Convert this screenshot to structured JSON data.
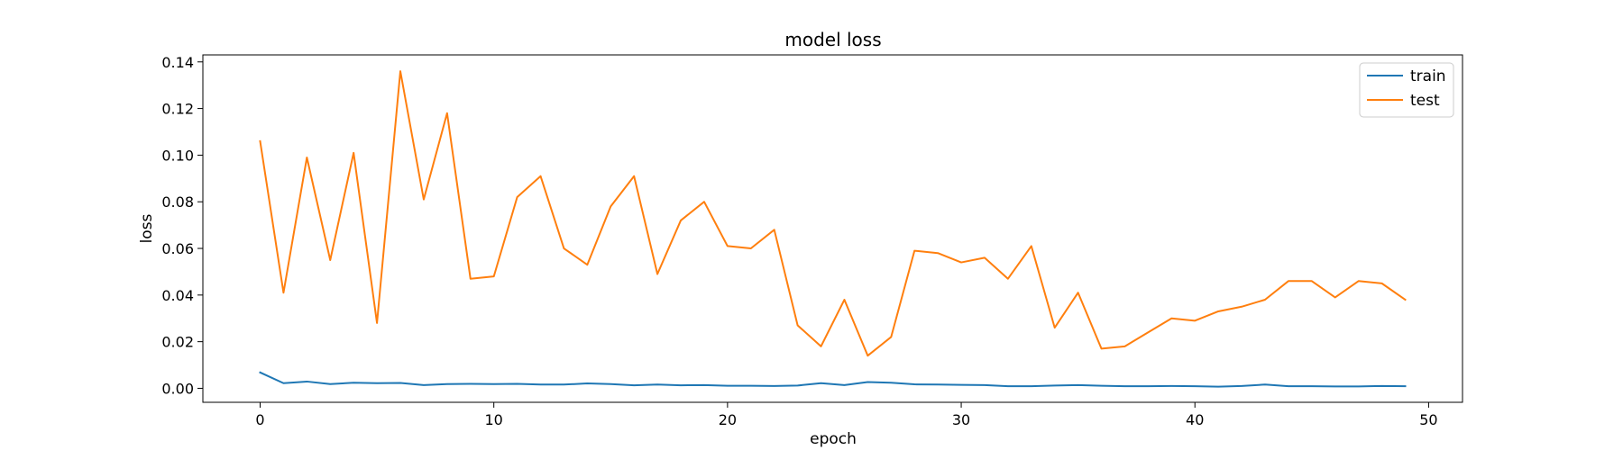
{
  "chart_data": {
    "type": "line",
    "title": "model loss",
    "xlabel": "epoch",
    "ylabel": "loss",
    "xlim": [
      -2.45,
      51.45
    ],
    "ylim": [
      -0.006,
      0.143
    ],
    "xticks": [
      0,
      10,
      20,
      30,
      40,
      50
    ],
    "yticks": [
      0.0,
      0.02,
      0.04,
      0.06,
      0.08,
      0.1,
      0.12,
      0.14
    ],
    "ytick_labels": [
      "0.00",
      "0.02",
      "0.04",
      "0.06",
      "0.08",
      "0.10",
      "0.12",
      "0.14"
    ],
    "grid": false,
    "legend_position": "top-right",
    "x": [
      0,
      1,
      2,
      3,
      4,
      5,
      6,
      7,
      8,
      9,
      10,
      11,
      12,
      13,
      14,
      15,
      16,
      17,
      18,
      19,
      20,
      21,
      22,
      23,
      24,
      25,
      26,
      27,
      28,
      29,
      30,
      31,
      32,
      33,
      34,
      35,
      36,
      37,
      38,
      39,
      40,
      41,
      42,
      43,
      44,
      45,
      46,
      47,
      48,
      49
    ],
    "series": [
      {
        "name": "train",
        "color": "#1f77b4",
        "values": [
          0.0068,
          0.0022,
          0.0029,
          0.0018,
          0.0024,
          0.0022,
          0.0023,
          0.0014,
          0.0018,
          0.0019,
          0.0018,
          0.0019,
          0.0016,
          0.0016,
          0.0021,
          0.0018,
          0.0013,
          0.0016,
          0.0013,
          0.0014,
          0.0011,
          0.0011,
          0.001,
          0.0012,
          0.0022,
          0.0014,
          0.0027,
          0.0024,
          0.0017,
          0.0016,
          0.0015,
          0.0014,
          0.0009,
          0.0009,
          0.0012,
          0.0014,
          0.0011,
          0.0009,
          0.0009,
          0.001,
          0.0009,
          0.0007,
          0.001,
          0.0016,
          0.0009,
          0.0009,
          0.0008,
          0.0008,
          0.001,
          0.0009
        ]
      },
      {
        "name": "test",
        "color": "#ff7f0e",
        "values": [
          0.106,
          0.041,
          0.099,
          0.055,
          0.101,
          0.028,
          0.136,
          0.081,
          0.118,
          0.047,
          0.048,
          0.082,
          0.091,
          0.06,
          0.053,
          0.078,
          0.091,
          0.049,
          0.072,
          0.08,
          0.061,
          0.06,
          0.068,
          0.027,
          0.018,
          0.038,
          0.014,
          0.022,
          0.059,
          0.058,
          0.054,
          0.056,
          0.047,
          0.061,
          0.026,
          0.041,
          0.017,
          0.018,
          0.024,
          0.03,
          0.029,
          0.033,
          0.035,
          0.038,
          0.046,
          0.046,
          0.039,
          0.046,
          0.045,
          0.038
        ]
      }
    ]
  }
}
